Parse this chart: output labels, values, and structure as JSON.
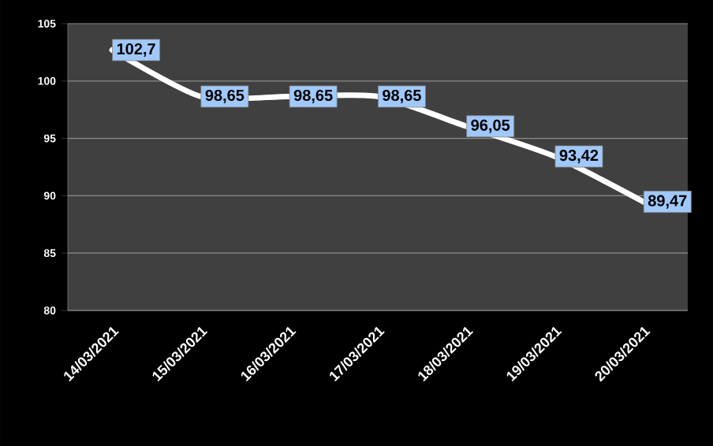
{
  "chart_data": {
    "type": "line",
    "categories": [
      "14/03/2021",
      "15/03/2021",
      "16/03/2021",
      "17/03/2021",
      "18/03/2021",
      "19/03/2021",
      "20/03/2021"
    ],
    "values": [
      102.7,
      98.65,
      98.65,
      98.65,
      96.05,
      93.42,
      89.47
    ],
    "value_labels": [
      "102,7",
      "98,65",
      "98,65",
      "98,65",
      "96,05",
      "93,42",
      "89,47"
    ],
    "color": "#ffffff",
    "ylim": [
      80,
      105
    ],
    "yticks": [
      80,
      85,
      90,
      95,
      100,
      105
    ],
    "grid": "y"
  }
}
